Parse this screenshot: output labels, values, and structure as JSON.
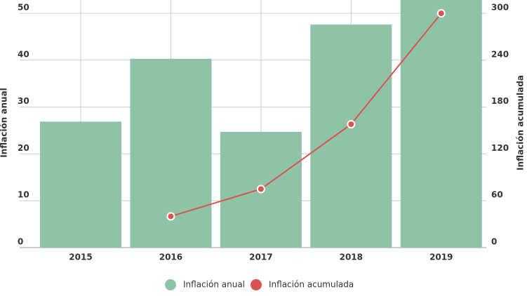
{
  "chart_data": {
    "type": "bar-line",
    "categories": [
      "2015",
      "2016",
      "2017",
      "2018",
      "2019"
    ],
    "series": [
      {
        "name": "Inflación anual",
        "type": "bar",
        "color": "#8fc3a8",
        "values": [
          26.9,
          40.3,
          24.7,
          47.6,
          53.8
        ]
      },
      {
        "name": "Inflación acumulada",
        "type": "line",
        "axis": "y2",
        "color": "#d9534f",
        "values": [
          null,
          40,
          75,
          158,
          300
        ]
      }
    ],
    "ylabel": "Inflación anual",
    "y2label": "Inflación acumulada",
    "ylim": [
      0,
      50
    ],
    "yticks": [
      0,
      10,
      20,
      30,
      40,
      50
    ],
    "y2lim": [
      0,
      300
    ],
    "y2ticks": [
      0,
      60,
      120,
      180,
      240,
      300
    ],
    "grid": true,
    "legend": "bottom"
  }
}
